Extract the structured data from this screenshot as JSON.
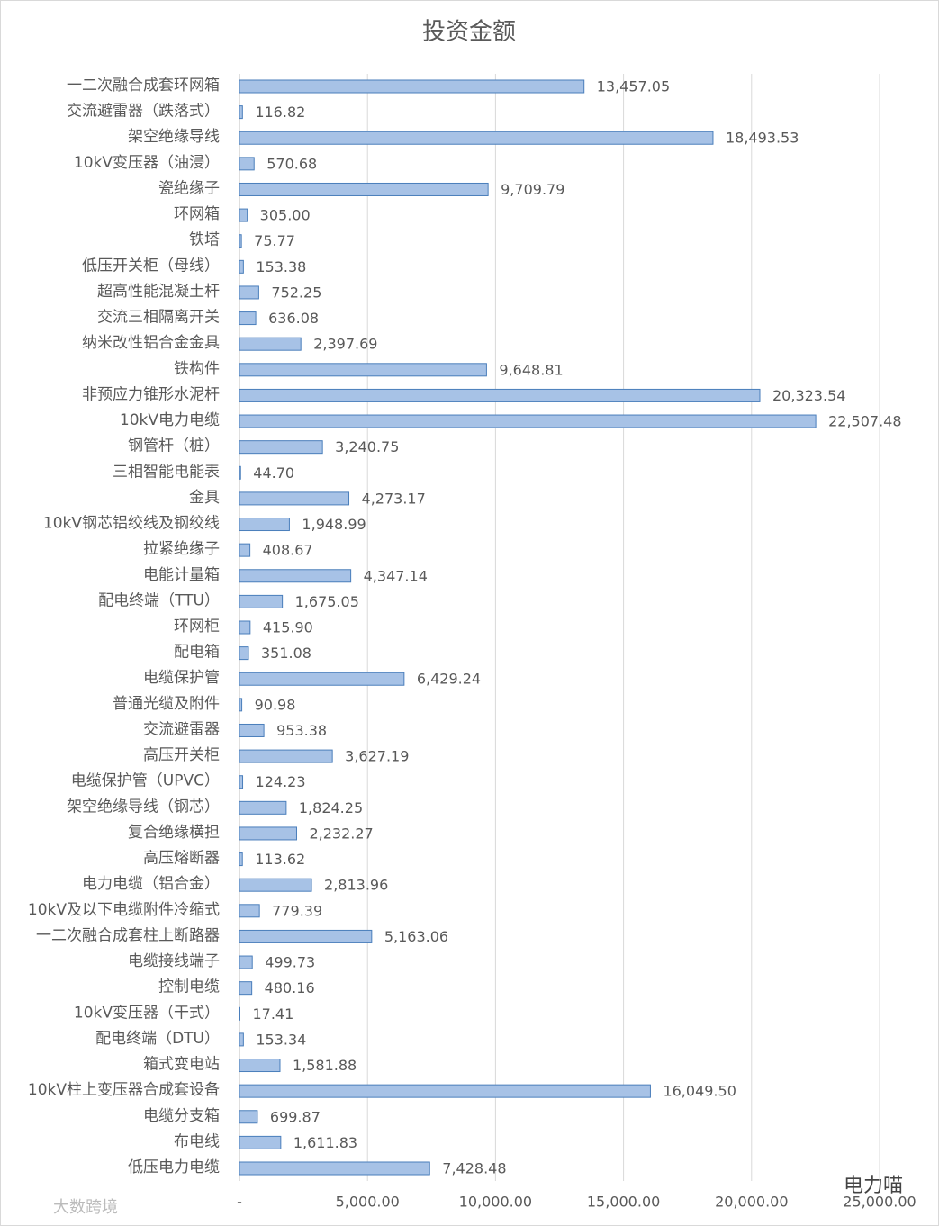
{
  "chart_data": {
    "type": "barh",
    "title": "投资金额",
    "categories": [
      "一二次融合成套环网箱",
      "交流避雷器（跌落式）",
      "架空绝缘导线",
      "10kV变压器（油浸）",
      "瓷绝缘子",
      "环网箱",
      "铁塔",
      "低压开关柜（母线）",
      "超高性能混凝土杆",
      "交流三相隔离开关",
      "纳米改性铝合金金具",
      "铁构件",
      "非预应力锥形水泥杆",
      "10kV电力电缆",
      "钢管杆（桩）",
      "三相智能电能表",
      "金具",
      "10kV钢芯铝绞线及钢绞线",
      "拉紧绝缘子",
      "电能计量箱",
      "配电终端（TTU）",
      "环网柜",
      "配电箱",
      "电缆保护管",
      "普通光缆及附件",
      "交流避雷器",
      "高压开关柜",
      "电缆保护管（UPVC）",
      "架空绝缘导线（钢芯）",
      "复合绝缘横担",
      "高压熔断器",
      "电力电缆（铝合金）",
      "10kV及以下电缆附件冷缩式",
      "一二次融合成套柱上断路器",
      "电缆接线端子",
      "控制电缆",
      "10kV变压器（干式）",
      "配电终端（DTU）",
      "箱式变电站",
      "10kV柱上变压器合成套设备",
      "电缆分支箱",
      "布电线",
      "低压电力电缆"
    ],
    "values": [
      13457.05,
      116.82,
      18493.53,
      570.68,
      9709.79,
      305.0,
      75.77,
      153.38,
      752.25,
      636.08,
      2397.69,
      9648.81,
      20323.54,
      22507.48,
      3240.75,
      44.7,
      4273.17,
      1948.99,
      408.67,
      4347.14,
      1675.05,
      415.9,
      351.08,
      6429.24,
      90.98,
      953.38,
      3627.19,
      124.23,
      1824.25,
      2232.27,
      113.62,
      2813.96,
      779.39,
      5163.06,
      499.73,
      480.16,
      17.41,
      153.34,
      1581.88,
      16049.5,
      699.87,
      1611.83,
      7428.48
    ],
    "value_labels": [
      "13,457.05",
      "116.82",
      "18,493.53",
      "570.68",
      "9,709.79",
      "305.00",
      "75.77",
      "153.38",
      "752.25",
      "636.08",
      "2,397.69",
      "9,648.81",
      "20,323.54",
      "22,507.48",
      "3,240.75",
      "44.70",
      "4,273.17",
      "1,948.99",
      "408.67",
      "4,347.14",
      "1,675.05",
      "415.90",
      "351.08",
      "6,429.24",
      "90.98",
      "953.38",
      "3,627.19",
      "124.23",
      "1,824.25",
      "2,232.27",
      "113.62",
      "2,813.96",
      "779.39",
      "5,163.06",
      "499.73",
      "480.16",
      "17.41",
      "153.34",
      "1,581.88",
      "16,049.50",
      "699.87",
      "1,611.83",
      "7,428.48"
    ],
    "color": "#a7c2e6",
    "edgecolor": "#4a7ebb",
    "xlim": [
      0,
      25000
    ],
    "xticks": [
      {
        "value": 0,
        "label": "-"
      },
      {
        "value": 5000,
        "label": "5,000.00"
      },
      {
        "value": 10000,
        "label": "10,000.00"
      },
      {
        "value": 15000,
        "label": "15,000.00"
      },
      {
        "value": 20000,
        "label": "20,000.00"
      },
      {
        "value": 25000,
        "label": "25,000.00"
      }
    ],
    "grid": true,
    "watermarks": [
      "电力喵",
      "大数跨境"
    ]
  }
}
